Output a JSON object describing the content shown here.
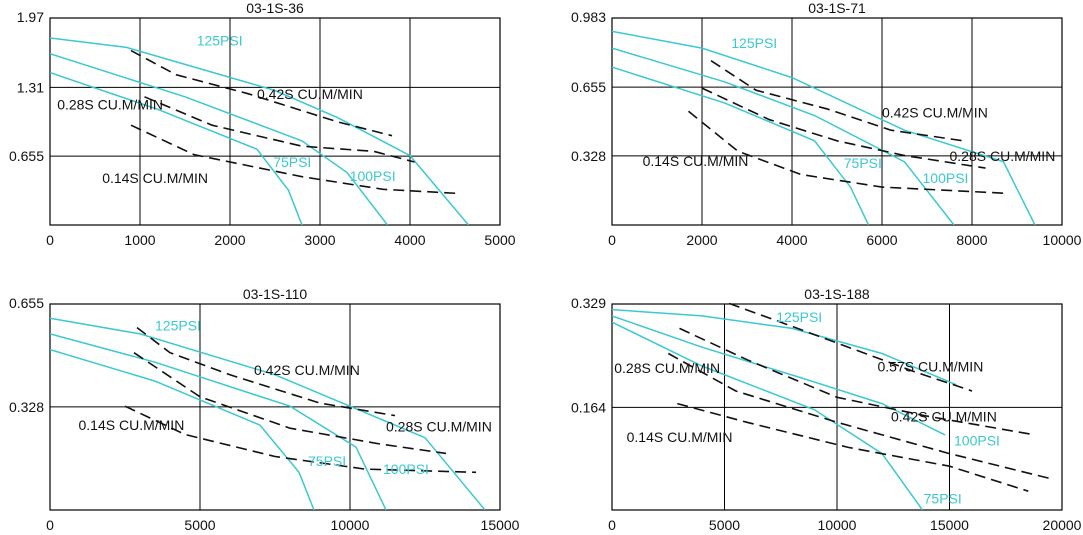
{
  "colors": {
    "psi_curve": "#3cc8d2",
    "efficiency_curve": "#111111",
    "grid": "#000000",
    "text": "#111111"
  },
  "chart_data": [
    {
      "type": "line",
      "title": "03-1S-36",
      "xlim": [
        0,
        5000
      ],
      "ylim": [
        0,
        1.97
      ],
      "x_ticks": [
        0,
        1000,
        2000,
        3000,
        4000,
        5000
      ],
      "x_tick_labels": [
        "0",
        "1000",
        "2000",
        "3000",
        "4000",
        "5000"
      ],
      "y_ticks": [
        0.655,
        1.31,
        1.97
      ],
      "y_tick_labels": [
        "0.655",
        "1.31",
        "1.97"
      ],
      "grid": true,
      "series": [
        {
          "name": "125PSI",
          "style": "solid",
          "x": [
            0,
            850,
            2500,
            3200,
            4000,
            4650
          ],
          "y": [
            1.78,
            1.69,
            1.28,
            1.02,
            0.66,
            0.0
          ]
        },
        {
          "name": "100PSI",
          "style": "solid",
          "x": [
            0,
            1500,
            2800,
            3300,
            3750
          ],
          "y": [
            1.63,
            1.22,
            0.8,
            0.5,
            0.0
          ]
        },
        {
          "name": "75PSI",
          "style": "solid",
          "x": [
            0,
            1200,
            2300,
            2650,
            2800
          ],
          "y": [
            1.45,
            1.1,
            0.72,
            0.33,
            0.0
          ]
        },
        {
          "name": "0.42S CU.M/MIN",
          "style": "dashed",
          "x": [
            900,
            1400,
            2200,
            3200,
            3800
          ],
          "y": [
            1.66,
            1.43,
            1.25,
            0.98,
            0.85
          ]
        },
        {
          "name": "0.28S CU.M/MIN",
          "style": "dashed",
          "x": [
            1050,
            1800,
            2800,
            3600,
            4050
          ],
          "y": [
            1.22,
            0.95,
            0.75,
            0.7,
            0.6
          ]
        },
        {
          "name": "0.14S CU.M/MIN",
          "style": "dashed",
          "x": [
            900,
            1600,
            2800,
            3700,
            4550
          ],
          "y": [
            0.95,
            0.67,
            0.46,
            0.34,
            0.3
          ]
        }
      ],
      "labels": [
        {
          "text": "125PSI",
          "x": 1630,
          "y": 1.71,
          "kind": "psi"
        },
        {
          "text": "0.42S CU.M/MIN",
          "x": 2300,
          "y": 1.2,
          "kind": "eff"
        },
        {
          "text": "0.28S CU.M/MIN",
          "x": 80,
          "y": 1.1,
          "kind": "eff"
        },
        {
          "text": "75PSI",
          "x": 2480,
          "y": 0.55,
          "kind": "psi"
        },
        {
          "text": "100PSI",
          "x": 3330,
          "y": 0.42,
          "kind": "psi"
        },
        {
          "text": "0.14S CU.M/MIN",
          "x": 580,
          "y": 0.4,
          "kind": "eff"
        }
      ]
    },
    {
      "type": "line",
      "title": "03-1S-71",
      "xlim": [
        0,
        10000
      ],
      "ylim": [
        0,
        0.983
      ],
      "x_ticks": [
        0,
        2000,
        4000,
        6000,
        8000,
        10000
      ],
      "x_tick_labels": [
        "0",
        "2000",
        "4000",
        "6000",
        "8000",
        "10000"
      ],
      "y_ticks": [
        0.328,
        0.655,
        0.983
      ],
      "y_tick_labels": [
        "0.328",
        "0.655",
        "0.983"
      ],
      "grid": true,
      "series": [
        {
          "name": "125PSI",
          "style": "solid",
          "x": [
            0,
            2000,
            4000,
            6500,
            8700,
            9400
          ],
          "y": [
            0.92,
            0.84,
            0.7,
            0.45,
            0.3,
            0.0
          ]
        },
        {
          "name": "100PSI",
          "style": "solid",
          "x": [
            0,
            2500,
            4500,
            6500,
            7600
          ],
          "y": [
            0.84,
            0.68,
            0.52,
            0.3,
            0.0
          ]
        },
        {
          "name": "75PSI",
          "style": "solid",
          "x": [
            0,
            2500,
            4500,
            5300,
            5700
          ],
          "y": [
            0.75,
            0.58,
            0.4,
            0.18,
            0.0
          ]
        },
        {
          "name": "0.42S CU.M/MIN",
          "style": "dashed",
          "x": [
            2200,
            3200,
            4800,
            6200,
            7800
          ],
          "y": [
            0.78,
            0.64,
            0.55,
            0.45,
            0.4
          ]
        },
        {
          "name": "0.28S CU.M/MIN",
          "style": "dashed",
          "x": [
            2000,
            3500,
            5000,
            6500,
            8300
          ],
          "y": [
            0.65,
            0.5,
            0.4,
            0.33,
            0.27
          ]
        },
        {
          "name": "0.14S CU.M/MIN",
          "style": "dashed",
          "x": [
            1700,
            2800,
            4200,
            6000,
            8800
          ],
          "y": [
            0.54,
            0.35,
            0.24,
            0.18,
            0.15
          ]
        }
      ],
      "labels": [
        {
          "text": "125PSI",
          "x": 2650,
          "y": 0.84,
          "kind": "psi"
        },
        {
          "text": "0.42S CU.M/MIN",
          "x": 6000,
          "y": 0.51,
          "kind": "eff"
        },
        {
          "text": "0.28S CU.M/MIN",
          "x": 7500,
          "y": 0.305,
          "kind": "eff"
        },
        {
          "text": "0.14S CU.M/MIN",
          "x": 680,
          "y": 0.28,
          "kind": "eff"
        },
        {
          "text": "75PSI",
          "x": 5150,
          "y": 0.27,
          "kind": "psi"
        },
        {
          "text": "100PSI",
          "x": 6900,
          "y": 0.2,
          "kind": "psi"
        }
      ]
    },
    {
      "type": "line",
      "title": "03-1S-110",
      "xlim": [
        0,
        15000
      ],
      "ylim": [
        0,
        0.655
      ],
      "x_ticks": [
        0,
        5000,
        10000,
        15000
      ],
      "x_tick_labels": [
        "0",
        "5000",
        "10000",
        "15000"
      ],
      "y_ticks": [
        0.328,
        0.655
      ],
      "y_tick_labels": [
        "0.328",
        "0.655"
      ],
      "grid": true,
      "series": [
        {
          "name": "125PSI",
          "style": "solid",
          "x": [
            0,
            3000,
            7500,
            12500,
            14500
          ],
          "y": [
            0.61,
            0.56,
            0.43,
            0.23,
            0.0
          ]
        },
        {
          "name": "100PSI",
          "style": "solid",
          "x": [
            0,
            3500,
            8000,
            10200,
            11200
          ],
          "y": [
            0.56,
            0.47,
            0.33,
            0.2,
            0.0
          ]
        },
        {
          "name": "75PSI",
          "style": "solid",
          "x": [
            0,
            3500,
            7000,
            8300,
            8800
          ],
          "y": [
            0.51,
            0.41,
            0.27,
            0.12,
            0.0
          ]
        },
        {
          "name": "0.42S CU.M/MIN",
          "style": "dashed",
          "x": [
            2900,
            4000,
            6000,
            9000,
            11500
          ],
          "y": [
            0.58,
            0.5,
            0.43,
            0.34,
            0.3
          ]
        },
        {
          "name": "0.28S CU.M/MIN",
          "style": "dashed",
          "x": [
            2800,
            5000,
            8000,
            11000,
            13200
          ],
          "y": [
            0.5,
            0.36,
            0.26,
            0.21,
            0.18
          ]
        },
        {
          "name": "0.14S CU.M/MIN",
          "style": "dashed",
          "x": [
            2500,
            4500,
            7500,
            10500,
            14200
          ],
          "y": [
            0.33,
            0.24,
            0.17,
            0.13,
            0.12
          ]
        }
      ],
      "labels": [
        {
          "text": "125PSI",
          "x": 3500,
          "y": 0.57,
          "kind": "psi"
        },
        {
          "text": "0.42S CU.M/MIN",
          "x": 6800,
          "y": 0.43,
          "kind": "eff"
        },
        {
          "text": "0.14S CU.M/MIN",
          "x": 950,
          "y": 0.255,
          "kind": "eff"
        },
        {
          "text": "0.28S CU.M/MIN",
          "x": 11200,
          "y": 0.25,
          "kind": "eff"
        },
        {
          "text": "75PSI",
          "x": 8600,
          "y": 0.14,
          "kind": "psi"
        },
        {
          "text": "100PSI",
          "x": 11100,
          "y": 0.115,
          "kind": "psi"
        }
      ]
    },
    {
      "type": "line",
      "title": "03-1S-188",
      "xlim": [
        0,
        20000
      ],
      "ylim": [
        0,
        0.329
      ],
      "x_ticks": [
        0,
        5000,
        10000,
        15000,
        20000
      ],
      "x_tick_labels": [
        "0",
        "5000",
        "10000",
        "15000",
        "20000"
      ],
      "y_ticks": [
        0.164,
        0.329
      ],
      "y_tick_labels": [
        "0.164",
        "0.329"
      ],
      "grid": true,
      "series": [
        {
          "name": "125PSI",
          "style": "solid",
          "x": [
            0,
            4000,
            8000,
            12000,
            15300
          ],
          "y": [
            0.32,
            0.31,
            0.29,
            0.25,
            0.2
          ]
        },
        {
          "name": "100PSI",
          "style": "solid",
          "x": [
            0,
            4000,
            8500,
            12000,
            14800
          ],
          "y": [
            0.31,
            0.26,
            0.21,
            0.17,
            0.12
          ]
        },
        {
          "name": "75PSI",
          "style": "solid",
          "x": [
            0,
            4000,
            9000,
            12000,
            13800
          ],
          "y": [
            0.3,
            0.23,
            0.16,
            0.09,
            0.0
          ]
        },
        {
          "name": "0.57S CU.M/MIN",
          "style": "dashed",
          "x": [
            5200,
            7500,
            10500,
            13500,
            16000
          ],
          "y": [
            0.33,
            0.3,
            0.26,
            0.22,
            0.19
          ]
        },
        {
          "name": "0.42S CU.M/MIN",
          "style": "dashed",
          "x": [
            3000,
            6000,
            10000,
            14000,
            18800
          ],
          "y": [
            0.29,
            0.24,
            0.18,
            0.15,
            0.12
          ]
        },
        {
          "name": "0.28S CU.M/MIN",
          "style": "dashed",
          "x": [
            2500,
            5500,
            10000,
            15000,
            19500
          ],
          "y": [
            0.25,
            0.19,
            0.14,
            0.09,
            0.05
          ]
        },
        {
          "name": "0.14S CU.M/MIN",
          "style": "dashed",
          "x": [
            2900,
            6000,
            10500,
            15000,
            18500
          ],
          "y": [
            0.17,
            0.14,
            0.1,
            0.07,
            0.03
          ]
        }
      ],
      "labels": [
        {
          "text": "125PSI",
          "x": 7300,
          "y": 0.3,
          "kind": "psi"
        },
        {
          "text": "0.57S CU.M/MIN",
          "x": 11800,
          "y": 0.221,
          "kind": "eff"
        },
        {
          "text": "0.28S CU.M/MIN",
          "x": 100,
          "y": 0.219,
          "kind": "eff"
        },
        {
          "text": "0.42S CU.M/MIN",
          "x": 12400,
          "y": 0.141,
          "kind": "eff"
        },
        {
          "text": "0.14S CU.M/MIN",
          "x": 650,
          "y": 0.109,
          "kind": "eff"
        },
        {
          "text": "100PSI",
          "x": 15200,
          "y": 0.103,
          "kind": "psi"
        },
        {
          "text": "75PSI",
          "x": 13850,
          "y": 0.01,
          "kind": "psi"
        }
      ]
    }
  ]
}
